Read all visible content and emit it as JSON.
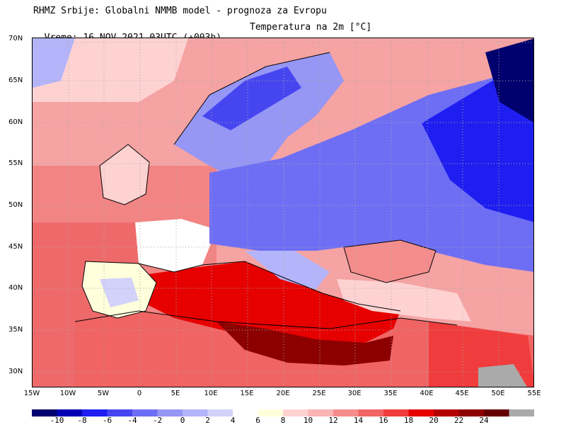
{
  "header": {
    "line1": "RHMZ Srbije: Globalni NMMB model - prognoza za Evropu",
    "line2": "Vreme: 16 NOV 2021 03UTC (+003h)",
    "variable": "Temperatura na 2m [°C]"
  },
  "map": {
    "lat_labels": [
      "70N",
      "65N",
      "60N",
      "55N",
      "50N",
      "45N",
      "40N",
      "35N",
      "30N"
    ],
    "lon_labels": [
      "15W",
      "10W",
      "5W",
      "0",
      "5E",
      "10E",
      "15E",
      "20E",
      "25E",
      "30E",
      "35E",
      "40E",
      "45E",
      "50E",
      "55E"
    ],
    "ocean_color": "#f5a3a3",
    "gridline_style": "dotted"
  },
  "legend": {
    "units": "°C",
    "labels": [
      "-10",
      "-8",
      "-6",
      "-4",
      "-2",
      "0",
      "2",
      "4",
      "6",
      "8",
      "10",
      "12",
      "14",
      "16",
      "18",
      "20",
      "22",
      "24"
    ],
    "colors": [
      "#00006e",
      "#0000b4",
      "#1e1ef0",
      "#4646f0",
      "#6e6ef5",
      "#9696f5",
      "#b4b4fa",
      "#d2d2fa",
      "#ffffff",
      "#ffffdc",
      "#ffd2d2",
      "#fab4b4",
      "#f58c8c",
      "#f06464",
      "#f03c3c",
      "#e60000",
      "#b40000",
      "#8c0000",
      "#640000",
      "#aaaaaa"
    ]
  }
}
